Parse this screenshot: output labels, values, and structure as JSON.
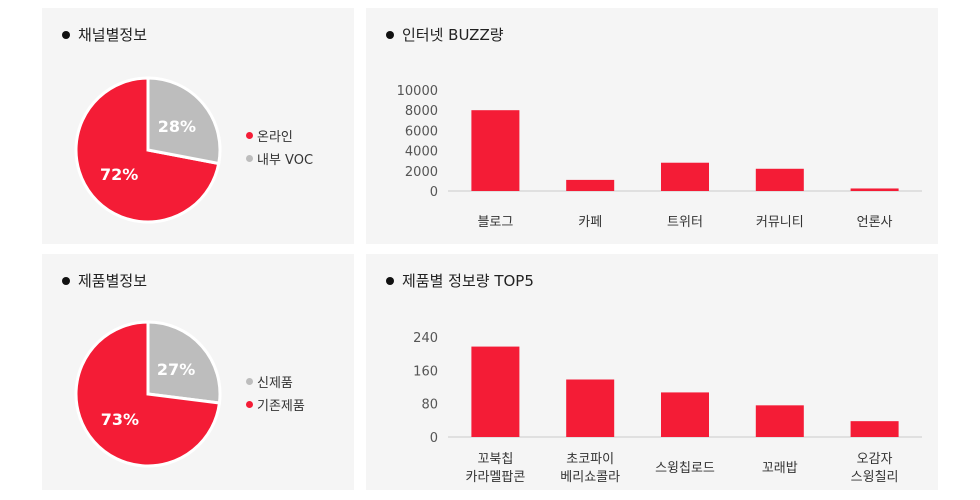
{
  "colors": {
    "primary": "#f41c36",
    "secondary": "#bdbdbd"
  },
  "panels": {
    "channel": {
      "title": "채널별정보"
    },
    "buzz": {
      "title": "인터넷 BUZZ량"
    },
    "product": {
      "title": "제품별정보"
    },
    "top5": {
      "title": "제품별 정보량 TOP5"
    }
  },
  "chart_data": [
    {
      "type": "pie",
      "title": "채널별정보",
      "labels": [
        "온라인",
        "내부 VOC"
      ],
      "values": [
        72,
        28
      ],
      "value_labels": [
        "72%",
        "28%"
      ],
      "colors": [
        "#f41c36",
        "#bdbdbd"
      ],
      "legend": "right"
    },
    {
      "type": "bar",
      "title": "인터넷 BUZZ량",
      "categories": [
        "블로그",
        "카페",
        "트위터",
        "커뮤니티",
        "언론사"
      ],
      "values": [
        8000,
        1100,
        2800,
        2200,
        250
      ],
      "ylim": [
        0,
        10000
      ],
      "yticks": [
        "0",
        "2000",
        "4000",
        "6000",
        "8000",
        "10000"
      ],
      "color": "#f41c36",
      "grid": false
    },
    {
      "type": "pie",
      "title": "제품별정보",
      "labels": [
        "신제품",
        "기존제품"
      ],
      "values": [
        27,
        73
      ],
      "value_labels": [
        "27%",
        "73%"
      ],
      "colors": [
        "#bdbdbd",
        "#f41c36"
      ],
      "legend": "right"
    },
    {
      "type": "bar",
      "title": "제품별 정보량 TOP5",
      "categories": [
        [
          "꼬북칩",
          "카라멜팝콘"
        ],
        [
          "초코파이",
          "베리쇼콜라"
        ],
        [
          "스윙칩로드"
        ],
        [
          "꼬래밥"
        ],
        [
          "오감자",
          "스윙칠리"
        ]
      ],
      "values": [
        217,
        138,
        107,
        76,
        38
      ],
      "ylim": [
        0,
        240
      ],
      "yticks": [
        "0",
        "80",
        "160",
        "240"
      ],
      "color": "#f41c36",
      "grid": false
    }
  ]
}
